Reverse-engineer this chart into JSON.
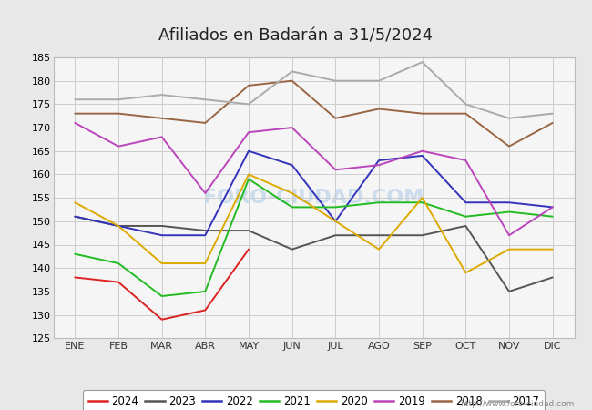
{
  "title": "Afiliados en Badarán a 31/5/2024",
  "background_color": "#e8e8e8",
  "plot_bg_color": "#f5f5f5",
  "top_bar_color": "#5599dd",
  "xlabel": "",
  "ylabel": "",
  "ylim": [
    125,
    185
  ],
  "yticks": [
    125,
    130,
    135,
    140,
    145,
    150,
    155,
    160,
    165,
    170,
    175,
    180,
    185
  ],
  "months": [
    "ENE",
    "FEB",
    "MAR",
    "ABR",
    "MAY",
    "JUN",
    "JUL",
    "AGO",
    "SEP",
    "OCT",
    "NOV",
    "DIC"
  ],
  "watermark": "FORO-CIUDAD.COM",
  "url": "http://www.foro-ciudad.com",
  "series": {
    "2024": {
      "color": "#dd2222",
      "data": [
        138,
        137,
        129,
        131,
        144,
        null,
        null,
        null,
        null,
        null,
        null,
        null
      ]
    },
    "2023": {
      "color": "#555555",
      "data": [
        151,
        149,
        149,
        148,
        148,
        144,
        147,
        147,
        147,
        149,
        135,
        138
      ]
    },
    "2022": {
      "color": "#3333bb",
      "data": [
        151,
        149,
        147,
        147,
        165,
        162,
        150,
        163,
        164,
        154,
        154,
        153
      ]
    },
    "2021": {
      "color": "#22bb22",
      "data": [
        143,
        141,
        134,
        135,
        159,
        153,
        153,
        154,
        154,
        151,
        152,
        151
      ]
    },
    "2020": {
      "color": "#ddaa00",
      "data": [
        154,
        149,
        141,
        141,
        160,
        156,
        150,
        144,
        155,
        139,
        144,
        144
      ]
    },
    "2019": {
      "color": "#bb44bb",
      "data": [
        171,
        166,
        168,
        156,
        169,
        170,
        161,
        162,
        165,
        163,
        147,
        153
      ]
    },
    "2018": {
      "color": "#996644",
      "data": [
        173,
        173,
        172,
        171,
        179,
        180,
        172,
        174,
        173,
        173,
        166,
        171
      ]
    },
    "2017": {
      "color": "#aaaaaa",
      "data": [
        176,
        176,
        177,
        176,
        175,
        182,
        180,
        180,
        184,
        175,
        172,
        173
      ]
    }
  },
  "legend_order": [
    "2024",
    "2023",
    "2022",
    "2021",
    "2020",
    "2019",
    "2018",
    "2017"
  ]
}
